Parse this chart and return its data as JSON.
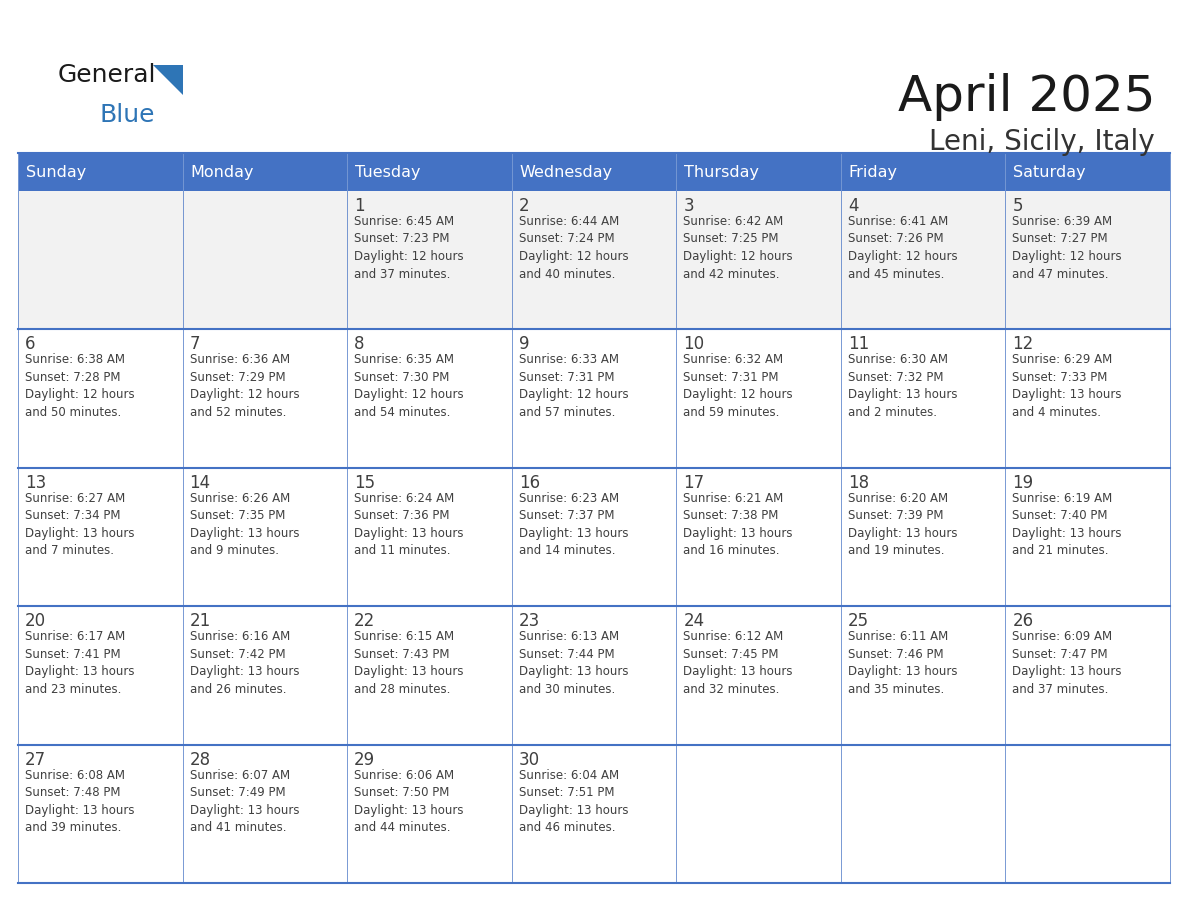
{
  "title": "April 2025",
  "subtitle": "Leni, Sicily, Italy",
  "header_bg": "#4472C4",
  "header_text_color": "#FFFFFF",
  "cell_bg": "#FFFFFF",
  "first_row_bg": "#F2F2F2",
  "separator_color": "#4472C4",
  "text_color": "#404040",
  "days_of_week": [
    "Sunday",
    "Monday",
    "Tuesday",
    "Wednesday",
    "Thursday",
    "Friday",
    "Saturday"
  ],
  "weeks": [
    [
      {
        "day": "",
        "info": ""
      },
      {
        "day": "",
        "info": ""
      },
      {
        "day": "1",
        "info": "Sunrise: 6:45 AM\nSunset: 7:23 PM\nDaylight: 12 hours\nand 37 minutes."
      },
      {
        "day": "2",
        "info": "Sunrise: 6:44 AM\nSunset: 7:24 PM\nDaylight: 12 hours\nand 40 minutes."
      },
      {
        "day": "3",
        "info": "Sunrise: 6:42 AM\nSunset: 7:25 PM\nDaylight: 12 hours\nand 42 minutes."
      },
      {
        "day": "4",
        "info": "Sunrise: 6:41 AM\nSunset: 7:26 PM\nDaylight: 12 hours\nand 45 minutes."
      },
      {
        "day": "5",
        "info": "Sunrise: 6:39 AM\nSunset: 7:27 PM\nDaylight: 12 hours\nand 47 minutes."
      }
    ],
    [
      {
        "day": "6",
        "info": "Sunrise: 6:38 AM\nSunset: 7:28 PM\nDaylight: 12 hours\nand 50 minutes."
      },
      {
        "day": "7",
        "info": "Sunrise: 6:36 AM\nSunset: 7:29 PM\nDaylight: 12 hours\nand 52 minutes."
      },
      {
        "day": "8",
        "info": "Sunrise: 6:35 AM\nSunset: 7:30 PM\nDaylight: 12 hours\nand 54 minutes."
      },
      {
        "day": "9",
        "info": "Sunrise: 6:33 AM\nSunset: 7:31 PM\nDaylight: 12 hours\nand 57 minutes."
      },
      {
        "day": "10",
        "info": "Sunrise: 6:32 AM\nSunset: 7:31 PM\nDaylight: 12 hours\nand 59 minutes."
      },
      {
        "day": "11",
        "info": "Sunrise: 6:30 AM\nSunset: 7:32 PM\nDaylight: 13 hours\nand 2 minutes."
      },
      {
        "day": "12",
        "info": "Sunrise: 6:29 AM\nSunset: 7:33 PM\nDaylight: 13 hours\nand 4 minutes."
      }
    ],
    [
      {
        "day": "13",
        "info": "Sunrise: 6:27 AM\nSunset: 7:34 PM\nDaylight: 13 hours\nand 7 minutes."
      },
      {
        "day": "14",
        "info": "Sunrise: 6:26 AM\nSunset: 7:35 PM\nDaylight: 13 hours\nand 9 minutes."
      },
      {
        "day": "15",
        "info": "Sunrise: 6:24 AM\nSunset: 7:36 PM\nDaylight: 13 hours\nand 11 minutes."
      },
      {
        "day": "16",
        "info": "Sunrise: 6:23 AM\nSunset: 7:37 PM\nDaylight: 13 hours\nand 14 minutes."
      },
      {
        "day": "17",
        "info": "Sunrise: 6:21 AM\nSunset: 7:38 PM\nDaylight: 13 hours\nand 16 minutes."
      },
      {
        "day": "18",
        "info": "Sunrise: 6:20 AM\nSunset: 7:39 PM\nDaylight: 13 hours\nand 19 minutes."
      },
      {
        "day": "19",
        "info": "Sunrise: 6:19 AM\nSunset: 7:40 PM\nDaylight: 13 hours\nand 21 minutes."
      }
    ],
    [
      {
        "day": "20",
        "info": "Sunrise: 6:17 AM\nSunset: 7:41 PM\nDaylight: 13 hours\nand 23 minutes."
      },
      {
        "day": "21",
        "info": "Sunrise: 6:16 AM\nSunset: 7:42 PM\nDaylight: 13 hours\nand 26 minutes."
      },
      {
        "day": "22",
        "info": "Sunrise: 6:15 AM\nSunset: 7:43 PM\nDaylight: 13 hours\nand 28 minutes."
      },
      {
        "day": "23",
        "info": "Sunrise: 6:13 AM\nSunset: 7:44 PM\nDaylight: 13 hours\nand 30 minutes."
      },
      {
        "day": "24",
        "info": "Sunrise: 6:12 AM\nSunset: 7:45 PM\nDaylight: 13 hours\nand 32 minutes."
      },
      {
        "day": "25",
        "info": "Sunrise: 6:11 AM\nSunset: 7:46 PM\nDaylight: 13 hours\nand 35 minutes."
      },
      {
        "day": "26",
        "info": "Sunrise: 6:09 AM\nSunset: 7:47 PM\nDaylight: 13 hours\nand 37 minutes."
      }
    ],
    [
      {
        "day": "27",
        "info": "Sunrise: 6:08 AM\nSunset: 7:48 PM\nDaylight: 13 hours\nand 39 minutes."
      },
      {
        "day": "28",
        "info": "Sunrise: 6:07 AM\nSunset: 7:49 PM\nDaylight: 13 hours\nand 41 minutes."
      },
      {
        "day": "29",
        "info": "Sunrise: 6:06 AM\nSunset: 7:50 PM\nDaylight: 13 hours\nand 44 minutes."
      },
      {
        "day": "30",
        "info": "Sunrise: 6:04 AM\nSunset: 7:51 PM\nDaylight: 13 hours\nand 46 minutes."
      },
      {
        "day": "",
        "info": ""
      },
      {
        "day": "",
        "info": ""
      },
      {
        "day": "",
        "info": ""
      }
    ]
  ],
  "logo_general_color": "#1a1a1a",
  "logo_blue_color": "#2E75B6",
  "logo_triangle_color": "#2E75B6",
  "title_color": "#1a1a1a",
  "subtitle_color": "#333333"
}
